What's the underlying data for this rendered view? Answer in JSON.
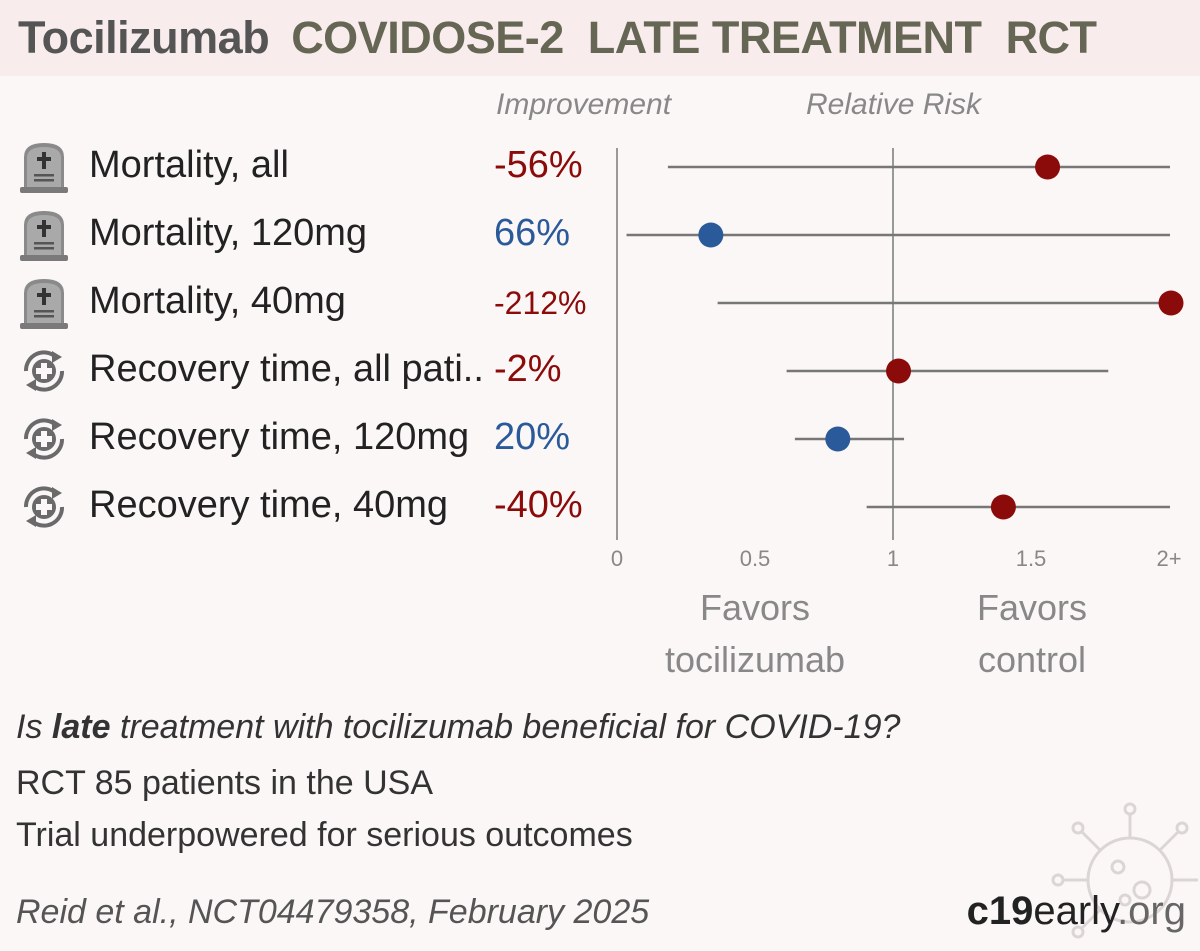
{
  "header": {
    "drug": "Tocilizumab",
    "trial": "COVIDOSE-2",
    "category": "LATE TREATMENT",
    "design": "RCT"
  },
  "columns": {
    "improvement": "Improvement",
    "relative_risk": "Relative Risk"
  },
  "colors": {
    "favors_treatment": "#2a5a9a",
    "favors_control": "#8b0a0a",
    "ci_line": "#777777",
    "axis": "#999999"
  },
  "chart_data": {
    "type": "forest",
    "xlabel_ticks": [
      "0",
      "0.5",
      "1",
      "1.5",
      "2+"
    ],
    "xlim": [
      0,
      2
    ],
    "reference": 1,
    "rows": [
      {
        "icon": "tombstone-icon",
        "label": "Mortality, all",
        "improvement": "-56%",
        "rr": 1.56,
        "ci": [
          0.17,
          2.0
        ],
        "direction": "control"
      },
      {
        "icon": "tombstone-icon",
        "label": "Mortality, 120mg",
        "improvement": "66%",
        "rr": 0.34,
        "ci": [
          0.02,
          2.0
        ],
        "direction": "treatment"
      },
      {
        "icon": "tombstone-icon",
        "label": "Mortality, 40mg",
        "improvement": "-212%",
        "rr": 2.0,
        "ci": [
          0.35,
          2.0
        ],
        "direction": "control"
      },
      {
        "icon": "recovery-icon",
        "label": "Recovery time, all pati..",
        "improvement": "-2%",
        "rr": 1.02,
        "ci": [
          0.6,
          1.78
        ],
        "direction": "control"
      },
      {
        "icon": "recovery-icon",
        "label": "Recovery time, 120mg",
        "improvement": "20%",
        "rr": 0.8,
        "ci": [
          0.63,
          1.04
        ],
        "direction": "treatment"
      },
      {
        "icon": "recovery-icon",
        "label": "Recovery time, 40mg",
        "improvement": "-40%",
        "rr": 1.4,
        "ci": [
          0.89,
          2.0
        ],
        "direction": "control"
      }
    ],
    "favors_left": "Favors\ntocilizumab",
    "favors_right": "Favors\ncontrol"
  },
  "footer": {
    "question_pre": "Is ",
    "question_emph": "late",
    "question_post": " treatment with tocilizumab beneficial for COVID-19?",
    "patients": "RCT 85 patients in the USA",
    "power_note": "Trial underpowered for serious outcomes",
    "citation": "Reid et al., NCT04479358, February 2025",
    "brand_bold": "c19",
    "brand_mid": "early",
    "brand_end": ".org"
  }
}
